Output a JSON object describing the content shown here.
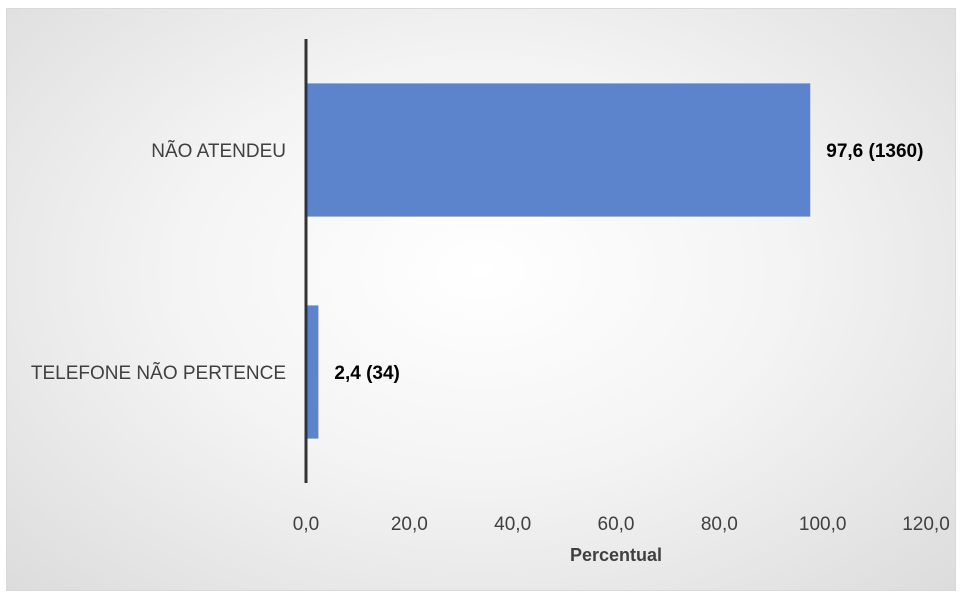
{
  "chart_data": {
    "type": "bar",
    "orientation": "horizontal",
    "categories": [
      "NÃO ATENDEU",
      "TELEFONE NÃO PERTENCE"
    ],
    "values": [
      97.6,
      2.4
    ],
    "data_labels": [
      "97,6 (1360)",
      "2,4 (34)"
    ],
    "xlabel": "Percentual",
    "ylabel": "",
    "xlim": [
      0,
      120
    ],
    "x_ticks": [
      0,
      20,
      40,
      60,
      80,
      100,
      120
    ],
    "x_tick_labels": [
      "0,0",
      "20,0",
      "40,0",
      "60,0",
      "80,0",
      "100,0",
      "120,0"
    ],
    "grid": false,
    "legend": "none",
    "bar_color": "#5b84cc",
    "axis_color": "#333333"
  }
}
